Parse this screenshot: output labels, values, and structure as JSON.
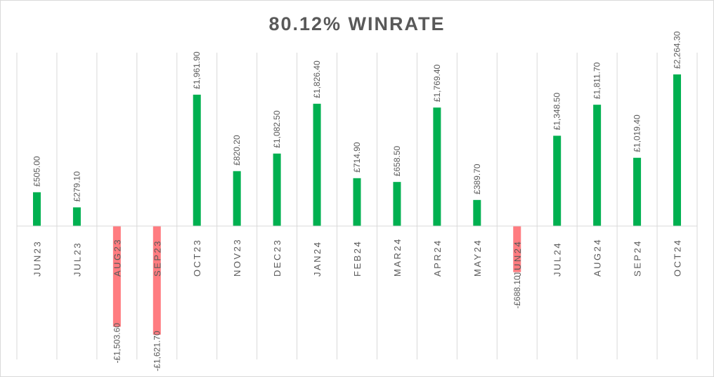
{
  "chart_data": {
    "type": "bar",
    "title": "80.12% WINRATE",
    "categories": [
      "JUN23",
      "JUL23",
      "AUG23",
      "SEP23",
      "OCT23",
      "NOV23",
      "DEC23",
      "JAN24",
      "FEB24",
      "MAR24",
      "APR24",
      "MAY24",
      "JUN24",
      "JUL24",
      "AUG24",
      "SEP24",
      "OCT24"
    ],
    "values": [
      505.0,
      279.1,
      -1503.6,
      -1621.7,
      1961.9,
      820.2,
      1082.5,
      1826.4,
      714.9,
      658.5,
      1769.4,
      389.7,
      -688.1,
      1348.5,
      1811.7,
      1019.4,
      2264.3
    ],
    "value_labels": [
      "£505.00",
      "£279.10",
      "-£1,503.60",
      "-£1,621.70",
      "£1,961.90",
      "£820.20",
      "£1,082.50",
      "£1,826.40",
      "£714.90",
      "£658.50",
      "£1,769.40",
      "£389.70",
      "-£688.10",
      "£1,348.50",
      "£1,811.70",
      "£1,019.40",
      "£2,264.30"
    ],
    "colors": {
      "positive": "#00b050",
      "negative": "#ff7c80",
      "grid": "#d9d9d9",
      "axis": "#d9d9d9",
      "text": "#595959",
      "title": "#595959"
    },
    "grid": true,
    "legend": "none",
    "xlabel": "",
    "ylabel": ""
  }
}
